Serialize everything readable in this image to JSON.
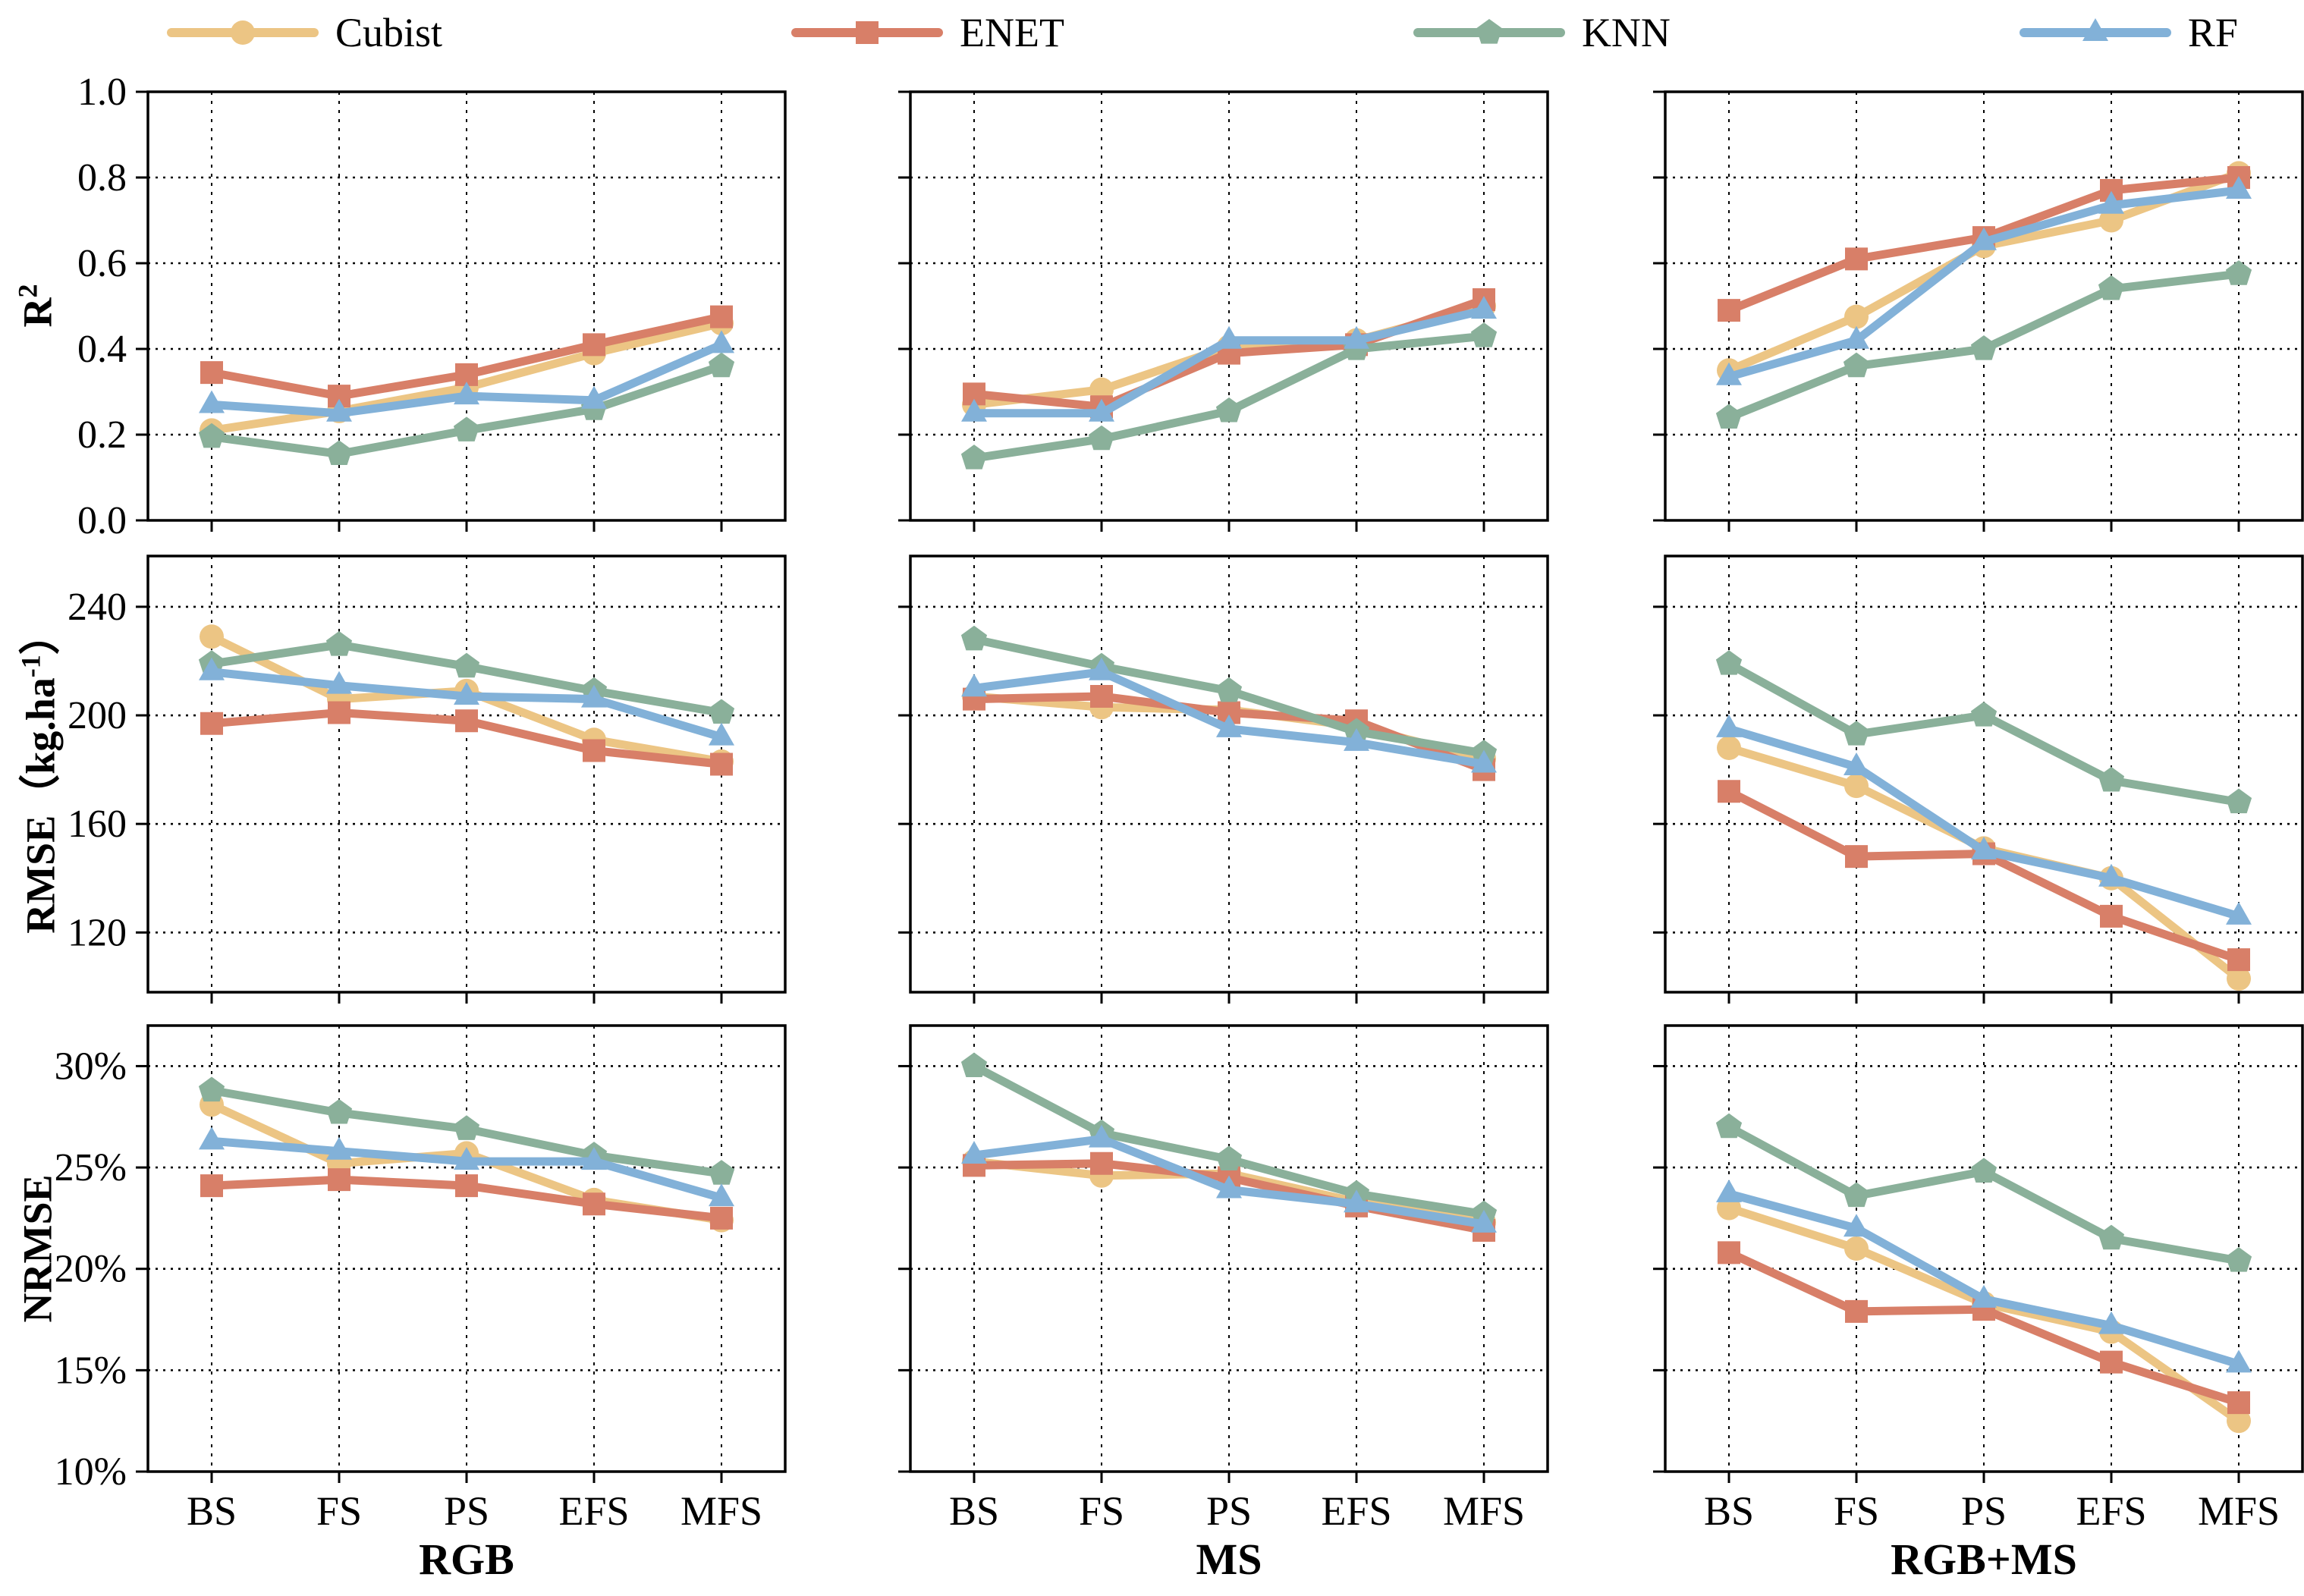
{
  "legend": {
    "items": [
      {
        "label": "Cubist",
        "color": "#ECC584",
        "marker": "circle"
      },
      {
        "label": "ENET",
        "color": "#D87F68",
        "marker": "square"
      },
      {
        "label": "KNN",
        "color": "#8AB09A",
        "marker": "pentagon"
      },
      {
        "label": "RF",
        "color": "#82B1D8",
        "marker": "triangle"
      }
    ]
  },
  "categories": [
    "BS",
    "FS",
    "PS",
    "EFS",
    "MFS"
  ],
  "row_labels": [
    {
      "base": "R",
      "sup": "2",
      "suffix": ""
    },
    {
      "base": "RMSE（kg.ha",
      "sup": "-1",
      "suffix": "）"
    },
    {
      "base": "NRMSE",
      "sup": "",
      "suffix": ""
    }
  ],
  "col_titles": [
    "RGB",
    "MS",
    "RGB+MS"
  ],
  "axes_style": {
    "spine_color": "#000000",
    "grid_color": "#000000"
  },
  "chart_data": [
    {
      "type": "line",
      "row": "R2",
      "col": "RGB",
      "categories": [
        "BS",
        "FS",
        "PS",
        "EFS",
        "MFS"
      ],
      "ylim": [
        0.0,
        1.0
      ],
      "yticks": [
        {
          "v": 1.0,
          "label": "1.0"
        },
        {
          "v": 0.8,
          "label": "0.8"
        },
        {
          "v": 0.6,
          "label": "0.6"
        },
        {
          "v": 0.4,
          "label": "0.4"
        },
        {
          "v": 0.2,
          "label": "0.2"
        },
        {
          "v": 0.0,
          "label": "0.0"
        }
      ],
      "show_ylabels": true,
      "show_xlabels": false,
      "series": [
        {
          "name": "Cubist",
          "values": [
            0.21,
            0.255,
            0.31,
            0.39,
            0.46
          ]
        },
        {
          "name": "ENET",
          "values": [
            0.345,
            0.29,
            0.34,
            0.41,
            0.475
          ]
        },
        {
          "name": "KNN",
          "values": [
            0.195,
            0.155,
            0.21,
            0.26,
            0.36
          ]
        },
        {
          "name": "RF",
          "values": [
            0.27,
            0.25,
            0.29,
            0.28,
            0.41
          ]
        }
      ]
    },
    {
      "type": "line",
      "row": "R2",
      "col": "MS",
      "categories": [
        "BS",
        "FS",
        "PS",
        "EFS",
        "MFS"
      ],
      "ylim": [
        0.0,
        1.0
      ],
      "yticks": [
        {
          "v": 1.0,
          "label": "1.0"
        },
        {
          "v": 0.8,
          "label": "0.8"
        },
        {
          "v": 0.6,
          "label": "0.6"
        },
        {
          "v": 0.4,
          "label": "0.4"
        },
        {
          "v": 0.2,
          "label": "0.2"
        },
        {
          "v": 0.0,
          "label": "0.0"
        }
      ],
      "show_ylabels": false,
      "show_xlabels": false,
      "series": [
        {
          "name": "Cubist",
          "values": [
            0.27,
            0.305,
            0.405,
            0.42,
            0.5
          ]
        },
        {
          "name": "ENET",
          "values": [
            0.295,
            0.265,
            0.39,
            0.41,
            0.515
          ]
        },
        {
          "name": "KNN",
          "values": [
            0.145,
            0.19,
            0.255,
            0.4,
            0.43
          ]
        },
        {
          "name": "RF",
          "values": [
            0.25,
            0.25,
            0.42,
            0.42,
            0.49
          ]
        }
      ]
    },
    {
      "type": "line",
      "row": "R2",
      "col": "RGB+MS",
      "categories": [
        "BS",
        "FS",
        "PS",
        "EFS",
        "MFS"
      ],
      "ylim": [
        0.0,
        1.0
      ],
      "yticks": [
        {
          "v": 1.0,
          "label": "1.0"
        },
        {
          "v": 0.8,
          "label": "0.8"
        },
        {
          "v": 0.6,
          "label": "0.6"
        },
        {
          "v": 0.4,
          "label": "0.4"
        },
        {
          "v": 0.2,
          "label": "0.2"
        },
        {
          "v": 0.0,
          "label": "0.0"
        }
      ],
      "show_ylabels": false,
      "show_xlabels": false,
      "series": [
        {
          "name": "Cubist",
          "values": [
            0.35,
            0.475,
            0.64,
            0.7,
            0.81
          ]
        },
        {
          "name": "ENET",
          "values": [
            0.49,
            0.61,
            0.66,
            0.77,
            0.8
          ]
        },
        {
          "name": "KNN",
          "values": [
            0.24,
            0.36,
            0.4,
            0.54,
            0.575
          ]
        },
        {
          "name": "RF",
          "values": [
            0.335,
            0.42,
            0.65,
            0.735,
            0.77
          ]
        }
      ]
    },
    {
      "type": "line",
      "row": "RMSE",
      "col": "RGB",
      "categories": [
        "BS",
        "FS",
        "PS",
        "EFS",
        "MFS"
      ],
      "ylim": [
        98,
        258.7
      ],
      "yticks": [
        {
          "v": 240,
          "label": "240"
        },
        {
          "v": 200,
          "label": "200"
        },
        {
          "v": 160,
          "label": "160"
        },
        {
          "v": 120,
          "label": "120"
        }
      ],
      "show_ylabels": true,
      "show_xlabels": false,
      "series": [
        {
          "name": "Cubist",
          "values": [
            229,
            206,
            209,
            191,
            183
          ]
        },
        {
          "name": "ENET",
          "values": [
            197,
            201,
            198,
            187,
            182
          ]
        },
        {
          "name": "KNN",
          "values": [
            219,
            226,
            218,
            209,
            201
          ]
        },
        {
          "name": "RF",
          "values": [
            216,
            211,
            207,
            206,
            192
          ]
        }
      ]
    },
    {
      "type": "line",
      "row": "RMSE",
      "col": "MS",
      "categories": [
        "BS",
        "FS",
        "PS",
        "EFS",
        "MFS"
      ],
      "ylim": [
        98,
        258.7
      ],
      "yticks": [
        {
          "v": 240,
          "label": "240"
        },
        {
          "v": 200,
          "label": "200"
        },
        {
          "v": 160,
          "label": "160"
        },
        {
          "v": 120,
          "label": "120"
        }
      ],
      "show_ylabels": false,
      "show_xlabels": false,
      "series": [
        {
          "name": "Cubist",
          "values": [
            207,
            203,
            202,
            196,
            184
          ]
        },
        {
          "name": "ENET",
          "values": [
            206,
            207,
            201,
            198,
            180
          ]
        },
        {
          "name": "KNN",
          "values": [
            228,
            218,
            209,
            194,
            186
          ]
        },
        {
          "name": "RF",
          "values": [
            210,
            216,
            195,
            190,
            182
          ]
        }
      ]
    },
    {
      "type": "line",
      "row": "RMSE",
      "col": "RGB+MS",
      "categories": [
        "BS",
        "FS",
        "PS",
        "EFS",
        "MFS"
      ],
      "ylim": [
        98,
        258.7
      ],
      "yticks": [
        {
          "v": 240,
          "label": "240"
        },
        {
          "v": 200,
          "label": "200"
        },
        {
          "v": 160,
          "label": "160"
        },
        {
          "v": 120,
          "label": "120"
        }
      ],
      "show_ylabels": false,
      "show_xlabels": false,
      "series": [
        {
          "name": "Cubist",
          "values": [
            188,
            174,
            151,
            140,
            103
          ]
        },
        {
          "name": "ENET",
          "values": [
            172,
            148,
            149,
            126,
            110
          ]
        },
        {
          "name": "KNN",
          "values": [
            219,
            193,
            200,
            176,
            168
          ]
        },
        {
          "name": "RF",
          "values": [
            195,
            181,
            150,
            140,
            126
          ]
        }
      ]
    },
    {
      "type": "line",
      "row": "NRMSE",
      "col": "RGB",
      "categories": [
        "BS",
        "FS",
        "PS",
        "EFS",
        "MFS"
      ],
      "ylim": [
        10,
        32
      ],
      "yticks": [
        {
          "v": 30,
          "label": "30%"
        },
        {
          "v": 25,
          "label": "25%"
        },
        {
          "v": 20,
          "label": "20%"
        },
        {
          "v": 15,
          "label": "15%"
        },
        {
          "v": 10,
          "label": "10%"
        }
      ],
      "show_ylabels": true,
      "show_xlabels": true,
      "series": [
        {
          "name": "Cubist",
          "values": [
            28.1,
            25.2,
            25.7,
            23.4,
            22.4
          ]
        },
        {
          "name": "ENET",
          "values": [
            24.1,
            24.4,
            24.1,
            23.2,
            22.5
          ]
        },
        {
          "name": "KNN",
          "values": [
            28.8,
            27.7,
            26.9,
            25.6,
            24.7
          ]
        },
        {
          "name": "RF",
          "values": [
            26.3,
            25.8,
            25.3,
            25.3,
            23.5
          ]
        }
      ]
    },
    {
      "type": "line",
      "row": "NRMSE",
      "col": "MS",
      "categories": [
        "BS",
        "FS",
        "PS",
        "EFS",
        "MFS"
      ],
      "ylim": [
        10,
        32
      ],
      "yticks": [
        {
          "v": 30,
          "label": "30%"
        },
        {
          "v": 25,
          "label": "25%"
        },
        {
          "v": 20,
          "label": "20%"
        },
        {
          "v": 15,
          "label": "15%"
        },
        {
          "v": 10,
          "label": "10%"
        }
      ],
      "show_ylabels": false,
      "show_xlabels": true,
      "series": [
        {
          "name": "Cubist",
          "values": [
            25.3,
            24.6,
            24.7,
            23.3,
            22.3
          ]
        },
        {
          "name": "ENET",
          "values": [
            25.1,
            25.2,
            24.5,
            23.1,
            21.9
          ]
        },
        {
          "name": "KNN",
          "values": [
            30.0,
            26.7,
            25.4,
            23.7,
            22.7
          ]
        },
        {
          "name": "RF",
          "values": [
            25.6,
            26.4,
            23.9,
            23.2,
            22.2
          ]
        }
      ]
    },
    {
      "type": "line",
      "row": "NRMSE",
      "col": "RGB+MS",
      "categories": [
        "BS",
        "FS",
        "PS",
        "EFS",
        "MFS"
      ],
      "ylim": [
        10,
        32
      ],
      "yticks": [
        {
          "v": 30,
          "label": "30%"
        },
        {
          "v": 25,
          "label": "25%"
        },
        {
          "v": 20,
          "label": "20%"
        },
        {
          "v": 15,
          "label": "15%"
        },
        {
          "v": 10,
          "label": "10%"
        }
      ],
      "show_ylabels": false,
      "show_xlabels": true,
      "series": [
        {
          "name": "Cubist",
          "values": [
            23.0,
            21.0,
            18.3,
            16.9,
            12.5
          ]
        },
        {
          "name": "ENET",
          "values": [
            20.8,
            17.9,
            18.0,
            15.4,
            13.4
          ]
        },
        {
          "name": "KNN",
          "values": [
            27.0,
            23.6,
            24.8,
            21.5,
            20.4
          ]
        },
        {
          "name": "RF",
          "values": [
            23.7,
            22.0,
            18.5,
            17.2,
            15.3
          ]
        }
      ]
    }
  ]
}
